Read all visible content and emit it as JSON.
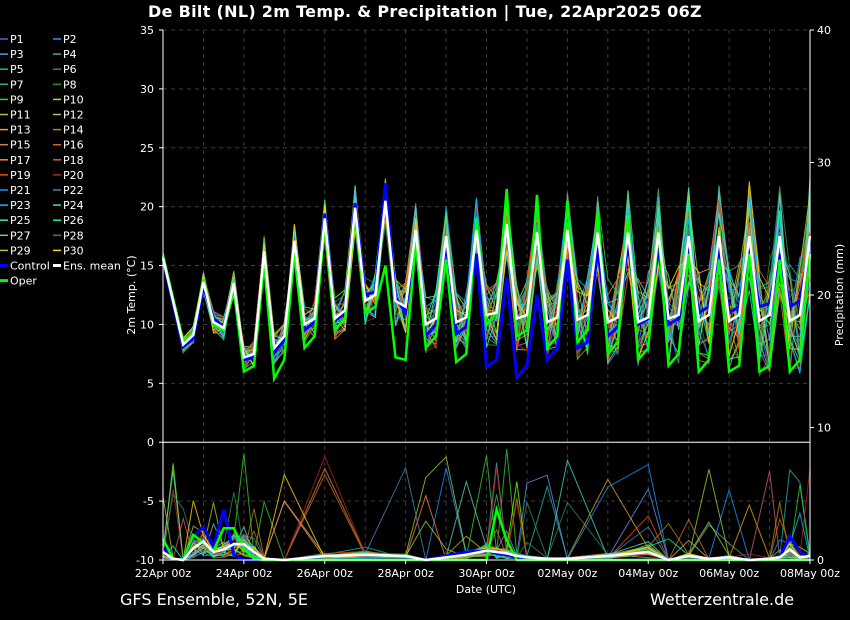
{
  "title": "De Bilt  (NL)  2m Temp. & Precipitation | Tue, 22Apr2025 06Z",
  "footer_left": "GFS Ensemble, 52N, 5E",
  "footer_right": "Wetterzentrale.de",
  "chart_data": {
    "type": "line",
    "xlabel": "Date (UTC)",
    "ylabel": "2m Temp. (°C)",
    "y2label": "Precipitation (mm)",
    "ylim": [
      -10,
      35
    ],
    "y2lim": [
      0,
      40
    ],
    "yticks": [
      -10,
      -5,
      0,
      5,
      10,
      15,
      20,
      25,
      30,
      35
    ],
    "y2ticks": [
      0,
      10,
      20,
      30,
      40
    ],
    "xlim_days": [
      0,
      16
    ],
    "xticks": [
      "22Apr 00z",
      "24Apr 00z",
      "26Apr 00z",
      "28Apr 00z",
      "30Apr 00z",
      "02May 00z",
      "04May 00z",
      "06May 00z",
      "08May 00z"
    ],
    "grid": true,
    "legend_position": "left",
    "legend": [
      {
        "name": "P1",
        "color": "#4169e1"
      },
      {
        "name": "P2",
        "color": "#1e90ff"
      },
      {
        "name": "P3",
        "color": "#6495ed"
      },
      {
        "name": "P4",
        "color": "#5f9ea0"
      },
      {
        "name": "P5",
        "color": "#20b2aa"
      },
      {
        "name": "P6",
        "color": "#2e8b57"
      },
      {
        "name": "P7",
        "color": "#3cb371"
      },
      {
        "name": "P8",
        "color": "#228b22"
      },
      {
        "name": "P9",
        "color": "#32cd32"
      },
      {
        "name": "P10",
        "color": "#7cfc00"
      },
      {
        "name": "P11",
        "color": "#9acd32"
      },
      {
        "name": "P12",
        "color": "#bdb76b"
      },
      {
        "name": "P13",
        "color": "#daa520"
      },
      {
        "name": "P14",
        "color": "#b8860b"
      },
      {
        "name": "P15",
        "color": "#cd853f"
      },
      {
        "name": "P16",
        "color": "#d2691e"
      },
      {
        "name": "P17",
        "color": "#ff7f50"
      },
      {
        "name": "P18",
        "color": "#cd5c5c"
      },
      {
        "name": "P19",
        "color": "#ff4500"
      },
      {
        "name": "P20",
        "color": "#b22222"
      },
      {
        "name": "P21",
        "color": "#1e90ff"
      },
      {
        "name": "P22",
        "color": "#4682b4"
      },
      {
        "name": "P23",
        "color": "#00bfff"
      },
      {
        "name": "P24",
        "color": "#48d1cc"
      },
      {
        "name": "P25",
        "color": "#40e0d0"
      },
      {
        "name": "P26",
        "color": "#00fa9a"
      },
      {
        "name": "P27",
        "color": "#66cdaa"
      },
      {
        "name": "P28",
        "color": "#2e8b57"
      },
      {
        "name": "P29",
        "color": "#9acd32"
      },
      {
        "name": "P30",
        "color": "#ffd700"
      },
      {
        "name": "Control",
        "color": "#0000ff"
      },
      {
        "name": "Ens. mean",
        "color": "#ffffff"
      },
      {
        "name": "Oper",
        "color": "#00ff00"
      }
    ],
    "temperature": {
      "x_days": [
        0,
        0.5,
        0.75,
        1,
        1.25,
        1.5,
        1.75,
        2,
        2.25,
        2.5,
        2.75,
        3,
        3.25,
        3.5,
        3.75,
        4,
        4.25,
        4.5,
        4.75,
        5,
        5.25,
        5.5,
        5.75,
        6,
        6.25,
        6.5,
        6.75,
        7,
        7.25,
        7.5,
        7.75,
        8,
        8.25,
        8.5,
        8.75,
        9,
        9.25,
        9.5,
        9.75,
        10,
        10.25,
        10.5,
        10.75,
        11,
        11.25,
        11.5,
        11.75,
        12,
        12.25,
        12.5,
        12.75,
        13,
        13.25,
        13.5,
        13.75,
        14,
        14.25,
        14.5,
        14.75,
        15,
        15.25,
        15.5,
        15.75,
        16
      ],
      "series": [
        {
          "name": "Ens. mean",
          "color": "#ffffff",
          "values": [
            15.6,
            8.3,
            9.1,
            13.6,
            10.2,
            9.7,
            13.5,
            7.2,
            7.5,
            16.2,
            8.0,
            9.0,
            17.1,
            10.0,
            10.5,
            19.0,
            10.5,
            11.2,
            19.9,
            12.0,
            12.5,
            20.5,
            12.0,
            11.5,
            18.0,
            10.0,
            10.5,
            17.5,
            10.2,
            10.6,
            18.0,
            10.8,
            11.0,
            18.5,
            10.5,
            10.8,
            17.8,
            10.2,
            10.6,
            18.0,
            10.4,
            10.8,
            17.8,
            10.2,
            10.6,
            17.8,
            10.2,
            10.6,
            17.8,
            10.5,
            10.8,
            17.5,
            10.3,
            10.8,
            17.5,
            10.3,
            10.8,
            17.5,
            10.3,
            10.8,
            17.5,
            10.3,
            10.8,
            17.5
          ]
        },
        {
          "name": "Control",
          "color": "#0000ff",
          "values": [
            15.4,
            8.1,
            8.8,
            13.2,
            10.5,
            9.8,
            13.4,
            7.0,
            7.2,
            16.0,
            7.6,
            8.7,
            17.0,
            9.5,
            10.2,
            19.4,
            10.3,
            11.0,
            20.3,
            12.5,
            12.8,
            22.0,
            12.3,
            11.0,
            17.5,
            9.0,
            10.0,
            17.0,
            9.2,
            9.8,
            16.0,
            6.4,
            7.0,
            14.0,
            5.5,
            6.5,
            12.5,
            7.0,
            8.0,
            15.5,
            8.0,
            8.5,
            16.5,
            9.0,
            9.8,
            17.0,
            10.0,
            10.5,
            16.5,
            10.0,
            10.5,
            16.5,
            11.0,
            11.5,
            16.5,
            11.0,
            11.5,
            16.5,
            11.5,
            11.8,
            16.0,
            11.5,
            12.0,
            16.5
          ]
        },
        {
          "name": "Oper",
          "color": "#00ff00",
          "values": [
            15.8,
            8.6,
            9.3,
            13.8,
            10.0,
            9.5,
            13.0,
            6.0,
            6.5,
            15.2,
            5.4,
            7.0,
            16.0,
            8.0,
            9.0,
            18.5,
            9.5,
            10.5,
            19.5,
            11.0,
            11.5,
            15.0,
            7.2,
            7.0,
            17.0,
            8.0,
            9.0,
            15.5,
            6.8,
            7.5,
            19.0,
            10.0,
            11.0,
            21.5,
            9.0,
            9.5,
            21.0,
            8.0,
            9.0,
            20.5,
            8.5,
            9.5,
            19.5,
            7.5,
            8.5,
            19.0,
            7.0,
            8.0,
            18.0,
            6.5,
            7.5,
            16.0,
            6.0,
            7.0,
            15.5,
            6.0,
            6.5,
            16.0,
            6.0,
            6.5,
            15.5,
            6.0,
            7.0,
            16.0
          ]
        }
      ]
    },
    "precipitation": {
      "unit": "mm",
      "x_days": [
        0,
        0.25,
        0.5,
        0.75,
        1,
        1.25,
        1.5,
        1.75,
        2,
        2.25,
        2.5,
        3,
        4,
        5,
        6,
        6.5,
        7,
        7.5,
        8,
        8.25,
        8.5,
        8.75,
        9,
        9.5,
        10,
        11,
        12,
        12.5,
        13,
        13.5,
        14,
        14.5,
        15,
        15.25,
        15.5,
        15.75,
        16
      ],
      "series": [
        {
          "name": "Ens. mean",
          "color": "#ffffff",
          "values": [
            0.6,
            0.1,
            0.0,
            0.9,
            1.4,
            0.6,
            0.8,
            1.2,
            1.2,
            0.6,
            0.1,
            0.0,
            0.3,
            0.4,
            0.3,
            0.0,
            0.2,
            0.4,
            0.7,
            0.6,
            0.5,
            0.3,
            0.2,
            0.1,
            0.1,
            0.3,
            0.6,
            0.0,
            0.3,
            0.1,
            0.2,
            0.0,
            0.1,
            0.2,
            0.8,
            0.2,
            0.3
          ]
        },
        {
          "name": "Control",
          "color": "#0000ff",
          "values": [
            0.9,
            0.1,
            0.0,
            1.8,
            2.5,
            1.0,
            3.8,
            0.4,
            0.0,
            0.0,
            0.0,
            0.0,
            0.0,
            0.0,
            0.0,
            0.0,
            0.3,
            0.6,
            0.7,
            0.5,
            0.4,
            0.2,
            0.0,
            0.0,
            0.0,
            0.0,
            0.0,
            0.0,
            0.0,
            0.0,
            0.0,
            0.0,
            0.0,
            0.2,
            1.8,
            0.6,
            0.2
          ]
        },
        {
          "name": "Oper",
          "color": "#00ff00",
          "values": [
            1.6,
            0.1,
            0.0,
            1.9,
            1.3,
            0.7,
            2.4,
            2.4,
            0.8,
            0.1,
            0.0,
            0.0,
            0.0,
            0.0,
            0.0,
            0.0,
            0.0,
            0.0,
            0.0,
            3.8,
            1.5,
            0.0,
            0.0,
            0.0,
            0.0,
            0.0,
            0.0,
            0.0,
            0.0,
            0.0,
            0.0,
            0.0,
            0.0,
            0.0,
            0.0,
            0.0,
            0.0
          ]
        }
      ]
    }
  }
}
